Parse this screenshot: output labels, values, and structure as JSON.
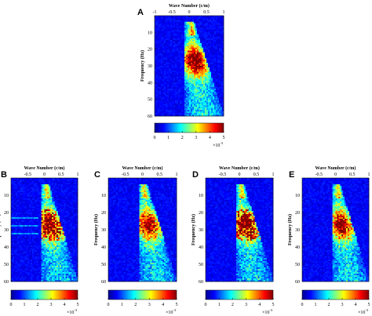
{
  "chart_data": [
    {
      "panel": "A",
      "type": "heatmap",
      "xlabel": "Wave Number (c/m)",
      "ylabel": "Frequency (Hz)",
      "xticks": [
        "-1",
        "-0.5",
        "0",
        "0.5",
        "1"
      ],
      "yticks": [
        "10",
        "20",
        "30",
        "40",
        "50",
        "60"
      ],
      "xlim": [
        -1,
        1
      ],
      "ylim": [
        0,
        60
      ],
      "colorbar": {
        "ticks": [
          "0",
          "1",
          "2",
          "3",
          "4",
          "5"
        ],
        "exponent": "×10",
        "exponent_power": "-3",
        "range": [
          0,
          5
        ]
      }
    },
    {
      "panel": "B",
      "type": "heatmap",
      "xlabel": "Wave Number (c/m)",
      "ylabel": "Frequency (Hz)",
      "xticks": [
        "-0.5",
        "0",
        "0.5",
        "1"
      ],
      "yticks": [
        "10",
        "20",
        "30",
        "40",
        "50",
        "60"
      ],
      "xlim": [
        -1,
        1
      ],
      "ylim": [
        0,
        60
      ],
      "colorbar": {
        "ticks": [
          "0",
          "1",
          "2",
          "3",
          "4",
          "5"
        ],
        "exponent": "×10",
        "exponent_power": "-3",
        "range": [
          0,
          5
        ]
      }
    },
    {
      "panel": "C",
      "type": "heatmap",
      "xlabel": "Wave Number (c/m)",
      "ylabel": "Frequency (Hz)",
      "xticks": [
        "-0.5",
        "0",
        "0.5",
        "1"
      ],
      "yticks": [
        "10",
        "20",
        "30",
        "40",
        "50",
        "60"
      ],
      "xlim": [
        -1,
        1
      ],
      "ylim": [
        0,
        60
      ],
      "colorbar": {
        "ticks": [
          "0",
          "1",
          "2",
          "3",
          "4",
          "5"
        ],
        "exponent": "×10",
        "exponent_power": "-3",
        "range": [
          0,
          5
        ]
      }
    },
    {
      "panel": "D",
      "type": "heatmap",
      "xlabel": "Wave Number (c/m)",
      "ylabel": "Frequency (Hz)",
      "xticks": [
        "-0.5",
        "0",
        "0.5",
        "1"
      ],
      "yticks": [
        "10",
        "20",
        "30",
        "40",
        "50",
        "60"
      ],
      "xlim": [
        -1,
        1
      ],
      "ylim": [
        0,
        60
      ],
      "colorbar": {
        "ticks": [
          "0",
          "1",
          "2",
          "3",
          "4",
          "5"
        ],
        "exponent": "×10",
        "exponent_power": "-3",
        "range": [
          0,
          5
        ]
      }
    },
    {
      "panel": "E",
      "type": "heatmap",
      "xlabel": "Wave Number (c/m)",
      "ylabel": "Frequency (Hz)",
      "xticks": [
        "-0.5",
        "0",
        "0.5",
        "1"
      ],
      "yticks": [
        "10",
        "20",
        "30",
        "40",
        "50",
        "60"
      ],
      "xlim": [
        -1,
        1
      ],
      "ylim": [
        0,
        60
      ],
      "colorbar": {
        "ticks": [
          "0",
          "1",
          "2",
          "3",
          "4",
          "5"
        ],
        "exponent": "×10",
        "exponent_power": "-3",
        "range": [
          0,
          5
        ]
      }
    }
  ],
  "colors": {
    "colormap": [
      "#00008f",
      "#0000ff",
      "#0080ff",
      "#00ffff",
      "#80ff80",
      "#ffff00",
      "#ff8000",
      "#ff0000",
      "#800000"
    ]
  }
}
